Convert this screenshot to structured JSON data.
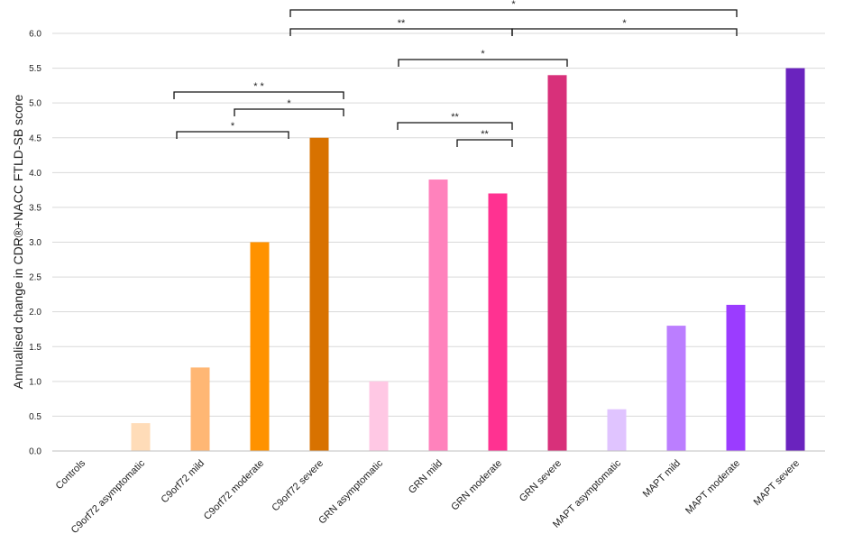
{
  "chart_data": {
    "type": "bar",
    "title": "",
    "xlabel": "",
    "ylabel": "Annualised change in CDR®+NACC FTLD-SB score",
    "ylim": [
      0,
      6.0
    ],
    "yticks": [
      "0.0",
      "0.5",
      "1.0",
      "1.5",
      "2.0",
      "2.5",
      "3.0",
      "3.5",
      "4.0",
      "4.5",
      "5.0",
      "5.5",
      "6.0"
    ],
    "grid": true,
    "categories": [
      "Controls",
      "C9orf72 asymptomatic",
      "C9orf72 mild",
      "C9orf72 moderate",
      "C9orf72 severe",
      "GRN asymptomatic",
      "GRN mild",
      "GRN moderate",
      "GRN severe",
      "MAPT asymptomatic",
      "MAPT mild",
      "MAPT moderate",
      "MAPT severe"
    ],
    "values": [
      0,
      0.4,
      1.2,
      3.0,
      4.5,
      1.0,
      3.9,
      3.7,
      5.4,
      0.6,
      1.8,
      2.1,
      5.5
    ],
    "colors": [
      "#ffffff",
      "#ffdcb8",
      "#ffb774",
      "#ff9200",
      "#d87200",
      "#ffc8e4",
      "#ff82bc",
      "#ff3291",
      "#d8307a",
      "#e0c4ff",
      "#bb7eff",
      "#9b3cff",
      "#6a23be"
    ],
    "significance": [
      {
        "from": 2,
        "to": 4,
        "label": "* *"
      },
      {
        "from": 3,
        "to": 4,
        "label": "*"
      },
      {
        "from": 2,
        "to": 3,
        "label": "*"
      },
      {
        "from": 6,
        "to": 8,
        "label": "*"
      },
      {
        "from": 6,
        "to": 7,
        "label": "**"
      },
      {
        "from": 7,
        "to": 7,
        "label": "**"
      },
      {
        "from": 4,
        "to": 11,
        "label": "*"
      },
      {
        "from": 4,
        "to": 7,
        "label": "**"
      },
      {
        "from": 7,
        "to": 11,
        "label": "*"
      }
    ]
  }
}
